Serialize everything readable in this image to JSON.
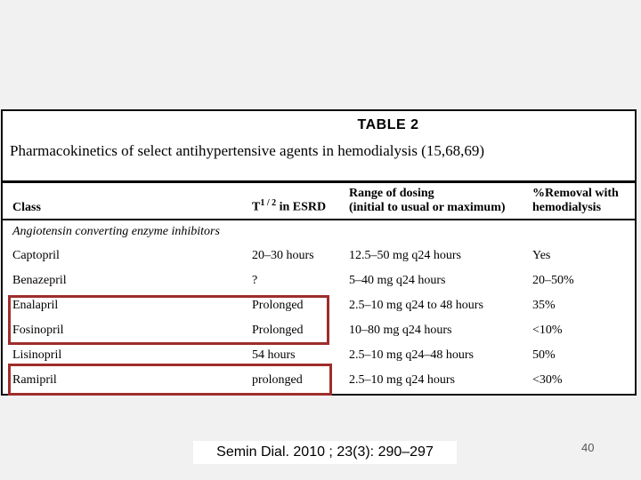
{
  "table": {
    "title": "TABLE 2",
    "subtitle": "Pharmacokinetics of select antihypertensive agents in hemodialysis (15,68,69)",
    "columns": {
      "class_label": "Class",
      "t_half_base": "T",
      "t_half_sup": "1 / 2",
      "t_half_rest": " in ESRD",
      "dosing_line1": "Range of dosing",
      "dosing_line2": "(initial to usual or maximum)",
      "removal_line1": "%Removal with",
      "removal_line2": "hemodialysis"
    },
    "group_label": "Angiotensin converting enzyme inhibitors",
    "rows": [
      {
        "drug": "Captopril",
        "t_half": "20–30 hours",
        "dosing": "12.5–50 mg q24 hours",
        "removal": "Yes",
        "highlighted": false
      },
      {
        "drug": "Benazepril",
        "t_half": "?",
        "dosing": "5–40 mg q24 hours",
        "removal": "20–50%",
        "highlighted": false
      },
      {
        "drug": "Enalapril",
        "t_half": "Prolonged",
        "dosing": "2.5–10 mg q24 to 48 hours",
        "removal": "35%",
        "highlighted": true
      },
      {
        "drug": "Fosinopril",
        "t_half": "Prolonged",
        "dosing": "10–80 mg q24 hours",
        "removal": "<10%",
        "highlighted": true
      },
      {
        "drug": "Lisinopril",
        "t_half": "54 hours",
        "dosing": "2.5–10 mg q24–48 hours",
        "removal": "50%",
        "highlighted": false
      },
      {
        "drug": "Ramipril",
        "t_half": "prolonged",
        "dosing": "2.5–10 mg q24 hours",
        "removal": "<30%",
        "highlighted": true
      }
    ],
    "highlight_color": "#9f2d2b",
    "border_color": "#0a0a0a",
    "background_color": "#ffffff"
  },
  "slide": {
    "background_color": "#f1f1f1"
  },
  "footer": {
    "citation": "Semin Dial. 2010 ; 23(3): 290–297",
    "page_number": "40"
  }
}
